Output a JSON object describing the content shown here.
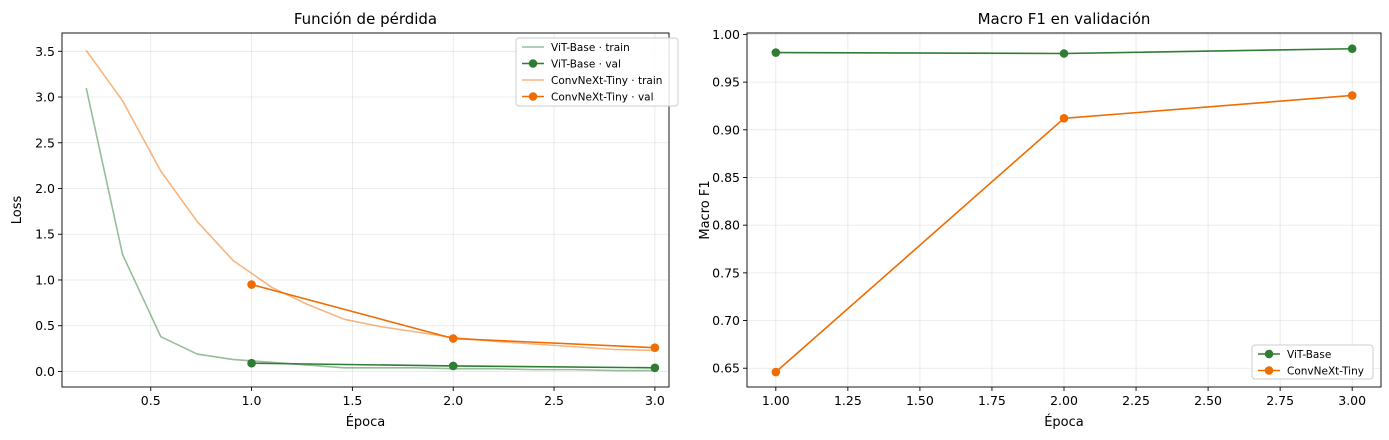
{
  "chart_data": [
    {
      "type": "line",
      "title": "Función de pérdida",
      "xlabel": "Época",
      "ylabel": "Loss",
      "xlim": [
        0.06,
        3.07
      ],
      "ylim": [
        -0.17,
        3.7
      ],
      "xticks": [
        0.5,
        1.0,
        1.5,
        2.0,
        2.5,
        3.0
      ],
      "xtick_labels": [
        "0.5",
        "1.0",
        "1.5",
        "2.0",
        "2.5",
        "3.0"
      ],
      "yticks": [
        0.0,
        0.5,
        1.0,
        1.5,
        2.0,
        2.5,
        3.0,
        3.5
      ],
      "ytick_labels": [
        "0.0",
        "0.5",
        "1.0",
        "1.5",
        "2.0",
        "2.5",
        "3.0",
        "3.5"
      ],
      "grid": true,
      "legend_position": "top-right",
      "series": [
        {
          "name": "ViT-Base · train",
          "color": "#2e7d32",
          "alpha": 0.5,
          "marker": false,
          "x": [
            0.18,
            0.36,
            0.55,
            0.73,
            0.91,
            1.1,
            1.28,
            1.46,
            1.64,
            1.82,
            2.0,
            2.2,
            2.4,
            2.6,
            2.8,
            3.0
          ],
          "y": [
            3.1,
            1.28,
            0.38,
            0.19,
            0.13,
            0.1,
            0.07,
            0.04,
            0.04,
            0.04,
            0.03,
            0.03,
            0.02,
            0.02,
            0.01,
            0.01
          ]
        },
        {
          "name": "ViT-Base · val",
          "color": "#2e7d32",
          "alpha": 1.0,
          "marker": true,
          "x": [
            1.0,
            2.0,
            3.0
          ],
          "y": [
            0.09,
            0.06,
            0.04
          ]
        },
        {
          "name": "ConvNeXt-Tiny · train",
          "color": "#ef6c00",
          "alpha": 0.5,
          "marker": false,
          "x": [
            0.18,
            0.36,
            0.55,
            0.73,
            0.91,
            1.1,
            1.28,
            1.46,
            1.64,
            1.82,
            2.0,
            2.2,
            2.4,
            2.6,
            2.8,
            3.0
          ],
          "y": [
            3.51,
            2.96,
            2.19,
            1.64,
            1.21,
            0.92,
            0.73,
            0.57,
            0.49,
            0.43,
            0.37,
            0.33,
            0.3,
            0.27,
            0.24,
            0.23
          ]
        },
        {
          "name": "ConvNeXt-Tiny · val",
          "color": "#ef6c00",
          "alpha": 1.0,
          "marker": true,
          "x": [
            1.0,
            2.0,
            3.0
          ],
          "y": [
            0.95,
            0.36,
            0.26
          ]
        }
      ]
    },
    {
      "type": "line",
      "title": "Macro F1 en validación",
      "xlabel": "Época",
      "ylabel": "Macro F1",
      "xlim": [
        0.9,
        3.1
      ],
      "ylim": [
        0.6303,
        1.0015
      ],
      "xticks": [
        1.0,
        1.25,
        1.5,
        1.75,
        2.0,
        2.25,
        2.5,
        2.75,
        3.0
      ],
      "xtick_labels": [
        "1.00",
        "1.25",
        "1.50",
        "1.75",
        "2.00",
        "2.25",
        "2.50",
        "2.75",
        "3.00"
      ],
      "yticks": [
        0.65,
        0.7,
        0.75,
        0.8,
        0.85,
        0.9,
        0.95,
        1.0
      ],
      "ytick_labels": [
        "0.65",
        "0.70",
        "0.75",
        "0.80",
        "0.85",
        "0.90",
        "0.95",
        "1.00"
      ],
      "grid": true,
      "legend_position": "bottom-right",
      "series": [
        {
          "name": "ViT-Base",
          "color": "#2e7d32",
          "alpha": 1.0,
          "marker": true,
          "x": [
            1.0,
            2.0,
            3.0
          ],
          "y": [
            0.981,
            0.98,
            0.985
          ]
        },
        {
          "name": "ConvNeXt-Tiny",
          "color": "#ef6c00",
          "alpha": 1.0,
          "marker": true,
          "x": [
            1.0,
            2.0,
            3.0
          ],
          "y": [
            0.646,
            0.912,
            0.936
          ]
        }
      ]
    }
  ]
}
